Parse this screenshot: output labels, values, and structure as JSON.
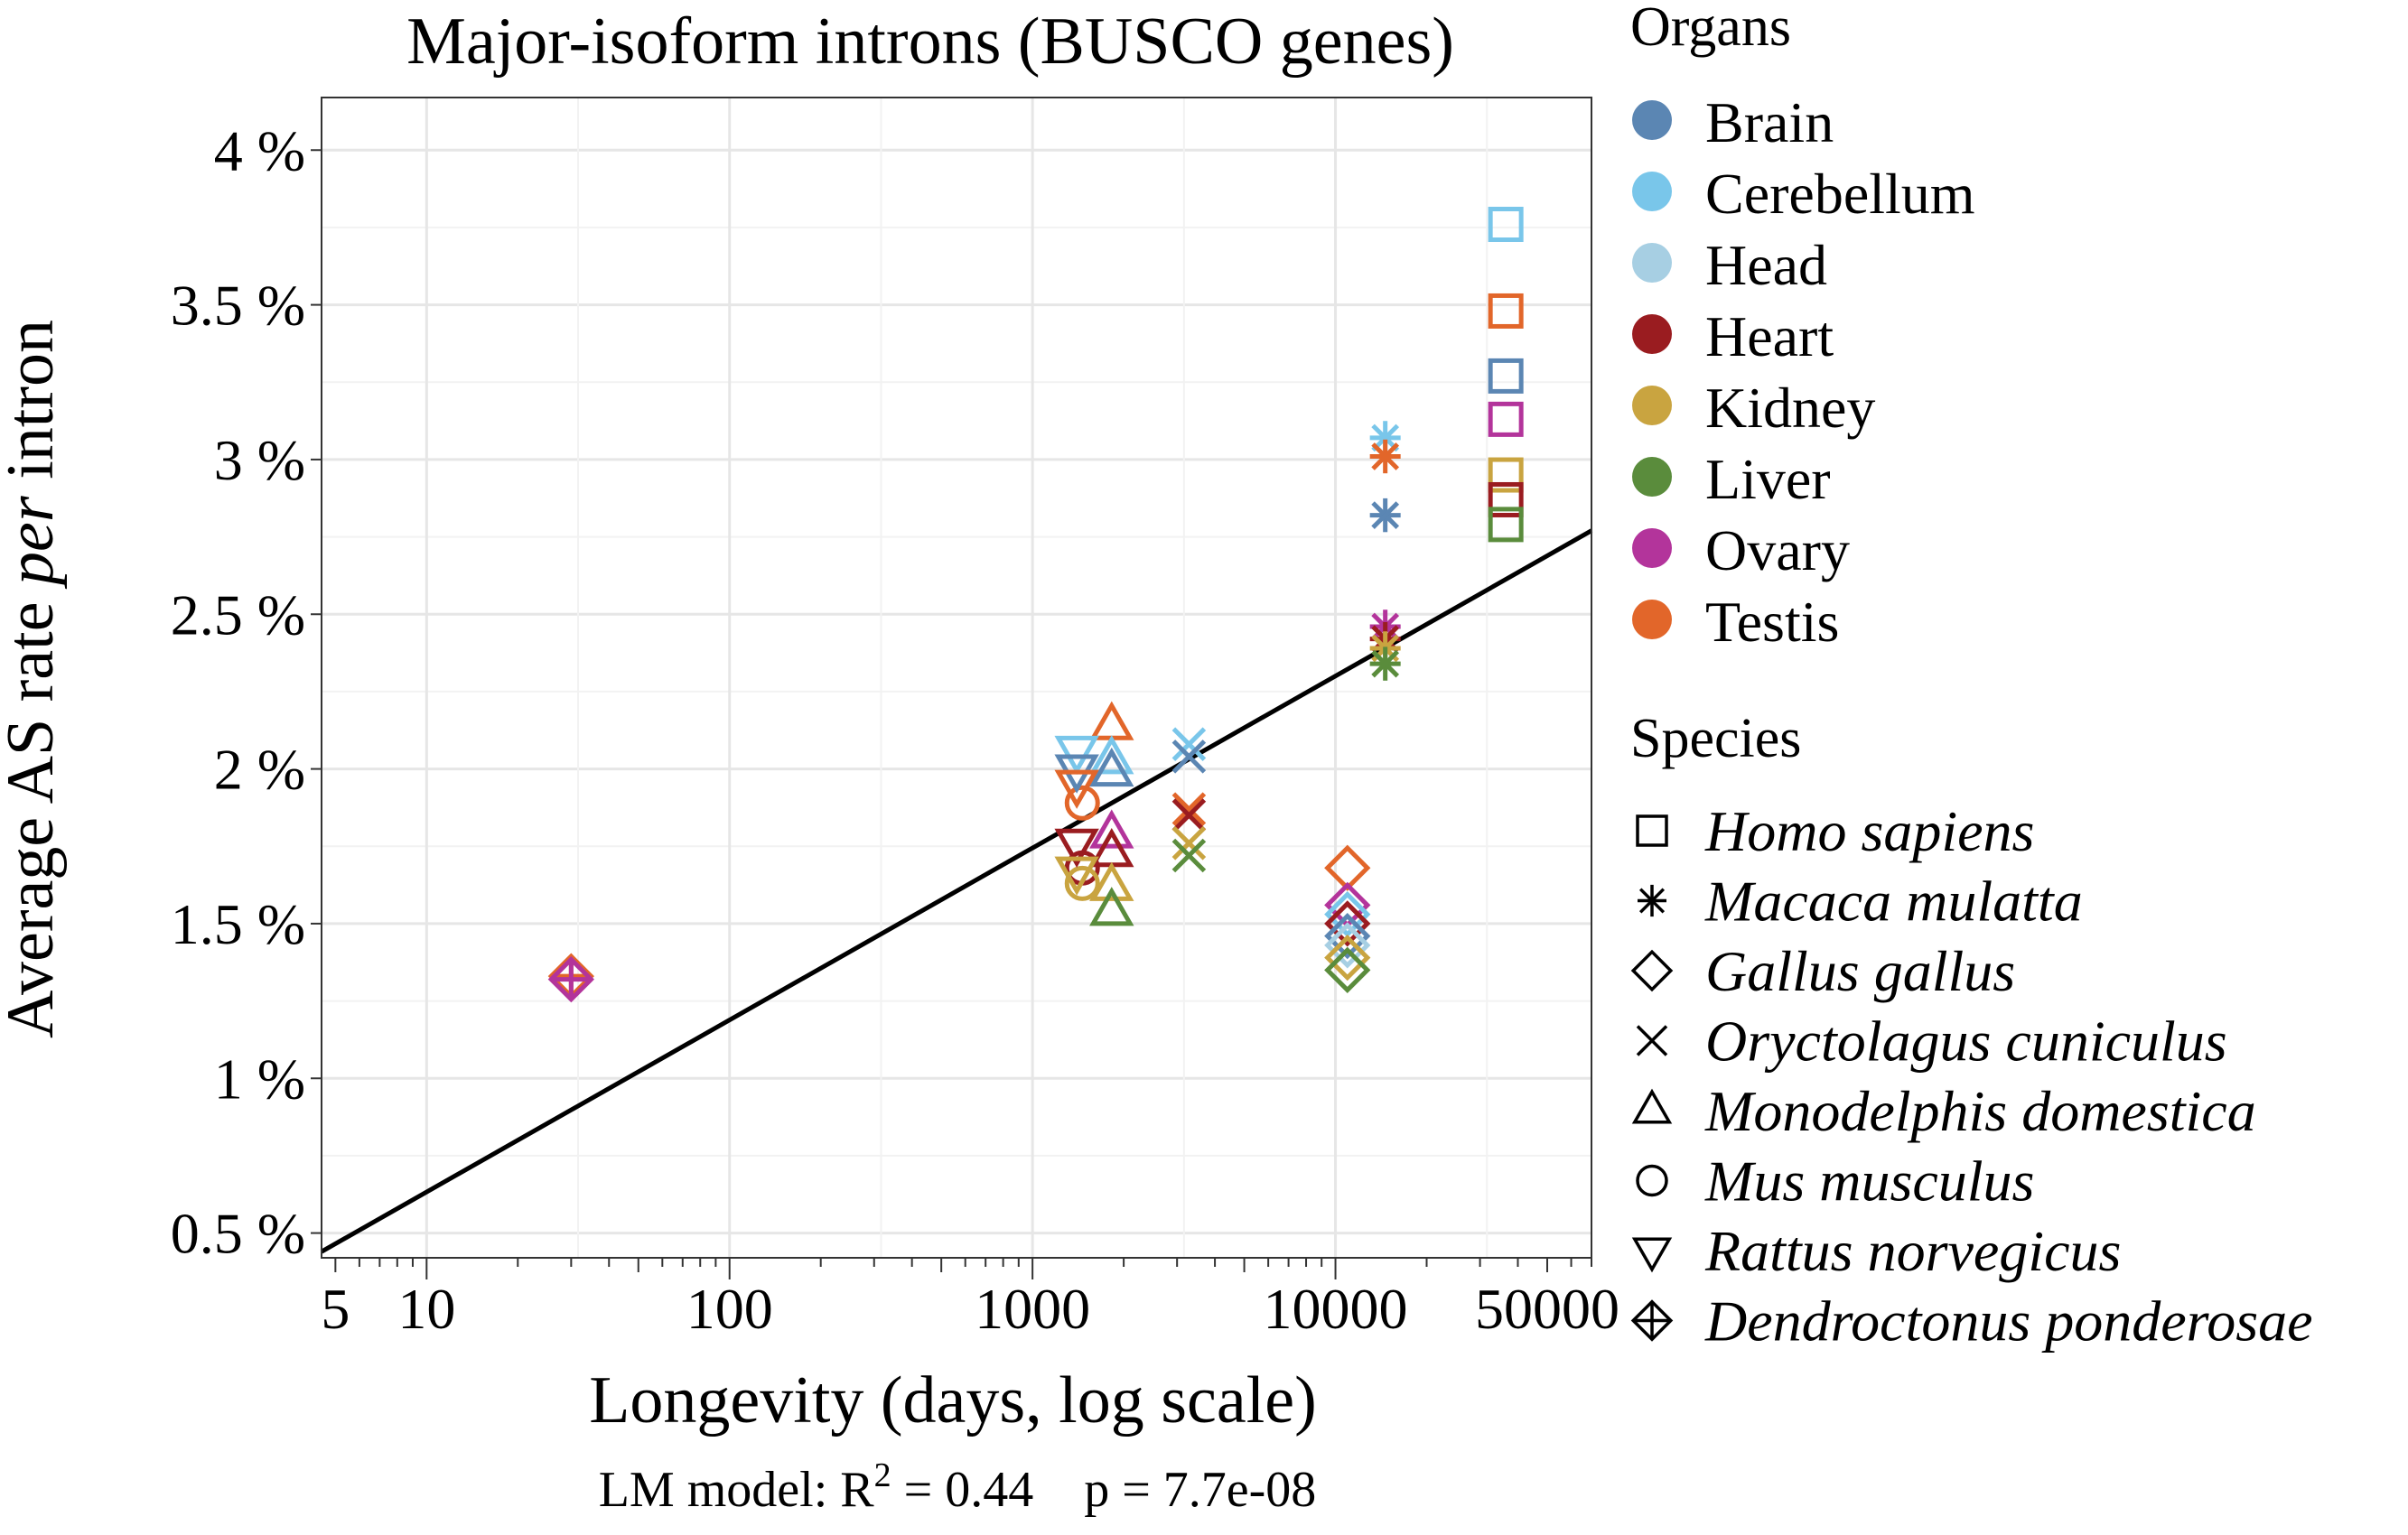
{
  "chart_data": {
    "type": "scatter",
    "title": "Major-isoform introns (BUSCO genes)",
    "xlabel": "Longevity (days, log scale)",
    "ylabel": {
      "before": "Average AS rate ",
      "emph": "per",
      "after": " intron"
    },
    "x_scale": "log",
    "xlim": [
      4.5,
      70000
    ],
    "ylim": [
      0.42,
      4.17
    ],
    "x_ticks": [
      {
        "value": 5,
        "label": "5"
      },
      {
        "value": 10,
        "label": "10"
      },
      {
        "value": 100,
        "label": "100"
      },
      {
        "value": 1000,
        "label": "1000"
      },
      {
        "value": 10000,
        "label": "10000"
      },
      {
        "value": 50000,
        "label": "50000"
      }
    ],
    "y_ticks": [
      {
        "value": 0.5,
        "label": "0.5 %"
      },
      {
        "value": 1,
        "label": "1 %"
      },
      {
        "value": 1.5,
        "label": "1.5 %"
      },
      {
        "value": 2,
        "label": "2 %"
      },
      {
        "value": 2.5,
        "label": "2.5 %"
      },
      {
        "value": 3,
        "label": "3 %"
      },
      {
        "value": 3.5,
        "label": "3.5 %"
      },
      {
        "value": 4,
        "label": "4 %"
      }
    ],
    "grid": true,
    "fit_line": {
      "type": "linear",
      "x": [
        4.5,
        70000
      ],
      "y": [
        0.44,
        2.77
      ]
    },
    "footnote": {
      "prefix": "LM model: R",
      "sup": "2",
      "suffix": " = 0.44    p = 7.7e-08"
    },
    "organs": [
      {
        "name": "Brain",
        "color": "#5b86b3"
      },
      {
        "name": "Cerebellum",
        "color": "#79c6ea"
      },
      {
        "name": "Head",
        "color": "#a7cfe3"
      },
      {
        "name": "Heart",
        "color": "#9a1c20"
      },
      {
        "name": "Kidney",
        "color": "#c9a440"
      },
      {
        "name": "Liver",
        "color": "#5a8c3c"
      },
      {
        "name": "Ovary",
        "color": "#b3349b"
      },
      {
        "name": "Testis",
        "color": "#e2662a"
      }
    ],
    "species": [
      {
        "name": "Homo sapiens",
        "shape": "square"
      },
      {
        "name": "Macaca mulatta",
        "shape": "asterisk"
      },
      {
        "name": "Gallus gallus",
        "shape": "diamond"
      },
      {
        "name": "Oryctolagus cuniculus",
        "shape": "cross"
      },
      {
        "name": "Monodelphis domestica",
        "shape": "triangle"
      },
      {
        "name": "Mus musculus",
        "shape": "circle"
      },
      {
        "name": "Rattus norvegicus",
        "shape": "triangle-down"
      },
      {
        "name": "Dendroctonus ponderosae",
        "shape": "diamond-plus"
      }
    ],
    "points": [
      {
        "species": "Homo sapiens",
        "organ": "Cerebellum",
        "x": 36500,
        "y": 3.76
      },
      {
        "species": "Homo sapiens",
        "organ": "Testis",
        "x": 36500,
        "y": 3.48
      },
      {
        "species": "Homo sapiens",
        "organ": "Brain",
        "x": 36500,
        "y": 3.27
      },
      {
        "species": "Homo sapiens",
        "organ": "Ovary",
        "x": 36500,
        "y": 3.13
      },
      {
        "species": "Homo sapiens",
        "organ": "Kidney",
        "x": 36500,
        "y": 2.95
      },
      {
        "species": "Homo sapiens",
        "organ": "Heart",
        "x": 36500,
        "y": 2.87
      },
      {
        "species": "Homo sapiens",
        "organ": "Liver",
        "x": 36500,
        "y": 2.79
      },
      {
        "species": "Macaca mulatta",
        "organ": "Cerebellum",
        "x": 14600,
        "y": 3.07
      },
      {
        "species": "Macaca mulatta",
        "organ": "Testis",
        "x": 14600,
        "y": 3.01
      },
      {
        "species": "Macaca mulatta",
        "organ": "Brain",
        "x": 14600,
        "y": 2.82
      },
      {
        "species": "Macaca mulatta",
        "organ": "Ovary",
        "x": 14600,
        "y": 2.46
      },
      {
        "species": "Macaca mulatta",
        "organ": "Heart",
        "x": 14600,
        "y": 2.42
      },
      {
        "species": "Macaca mulatta",
        "organ": "Kidney",
        "x": 14600,
        "y": 2.39
      },
      {
        "species": "Macaca mulatta",
        "organ": "Liver",
        "x": 14600,
        "y": 2.34
      },
      {
        "species": "Gallus gallus",
        "organ": "Testis",
        "x": 10950,
        "y": 1.68
      },
      {
        "species": "Gallus gallus",
        "organ": "Ovary",
        "x": 10950,
        "y": 1.56
      },
      {
        "species": "Gallus gallus",
        "organ": "Cerebellum",
        "x": 10950,
        "y": 1.53
      },
      {
        "species": "Gallus gallus",
        "organ": "Heart",
        "x": 10950,
        "y": 1.5
      },
      {
        "species": "Gallus gallus",
        "organ": "Brain",
        "x": 10950,
        "y": 1.46
      },
      {
        "species": "Gallus gallus",
        "organ": "Head",
        "x": 10950,
        "y": 1.43
      },
      {
        "species": "Gallus gallus",
        "organ": "Kidney",
        "x": 10950,
        "y": 1.39
      },
      {
        "species": "Gallus gallus",
        "organ": "Liver",
        "x": 10950,
        "y": 1.35
      },
      {
        "species": "Oryctolagus cuniculus",
        "organ": "Cerebellum",
        "x": 3285,
        "y": 2.08
      },
      {
        "species": "Oryctolagus cuniculus",
        "organ": "Brain",
        "x": 3285,
        "y": 2.04
      },
      {
        "species": "Oryctolagus cuniculus",
        "organ": "Testis",
        "x": 3285,
        "y": 1.87
      },
      {
        "species": "Oryctolagus cuniculus",
        "organ": "Heart",
        "x": 3285,
        "y": 1.85
      },
      {
        "species": "Oryctolagus cuniculus",
        "organ": "Kidney",
        "x": 3285,
        "y": 1.76
      },
      {
        "species": "Oryctolagus cuniculus",
        "organ": "Liver",
        "x": 3285,
        "y": 1.72
      },
      {
        "species": "Monodelphis domestica",
        "organ": "Testis",
        "x": 1825,
        "y": 2.14
      },
      {
        "species": "Monodelphis domestica",
        "organ": "Cerebellum",
        "x": 1825,
        "y": 2.03
      },
      {
        "species": "Monodelphis domestica",
        "organ": "Brain",
        "x": 1825,
        "y": 1.99
      },
      {
        "species": "Monodelphis domestica",
        "organ": "Ovary",
        "x": 1825,
        "y": 1.79
      },
      {
        "species": "Monodelphis domestica",
        "organ": "Heart",
        "x": 1825,
        "y": 1.73
      },
      {
        "species": "Monodelphis domestica",
        "organ": "Kidney",
        "x": 1825,
        "y": 1.62
      },
      {
        "species": "Monodelphis domestica",
        "organ": "Liver",
        "x": 1825,
        "y": 1.54
      },
      {
        "species": "Mus musculus",
        "organ": "Testis",
        "x": 1460,
        "y": 1.89
      },
      {
        "species": "Mus musculus",
        "organ": "Heart",
        "x": 1460,
        "y": 1.68
      },
      {
        "species": "Mus musculus",
        "organ": "Kidney",
        "x": 1460,
        "y": 1.63
      },
      {
        "species": "Rattus norvegicus",
        "organ": "Cerebellum",
        "x": 1400,
        "y": 2.06
      },
      {
        "species": "Rattus norvegicus",
        "organ": "Brain",
        "x": 1400,
        "y": 2.0
      },
      {
        "species": "Rattus norvegicus",
        "organ": "Testis",
        "x": 1400,
        "y": 1.95
      },
      {
        "species": "Rattus norvegicus",
        "organ": "Heart",
        "x": 1400,
        "y": 1.76
      },
      {
        "species": "Rattus norvegicus",
        "organ": "Kidney",
        "x": 1400,
        "y": 1.67
      },
      {
        "species": "Dendroctonus ponderosae",
        "organ": "Testis",
        "x": 30,
        "y": 1.33
      },
      {
        "species": "Dendroctonus ponderosae",
        "organ": "Ovary",
        "x": 30,
        "y": 1.32
      }
    ],
    "legend": {
      "placement": "right",
      "organs_title": "Organs",
      "species_title": "Species"
    }
  }
}
